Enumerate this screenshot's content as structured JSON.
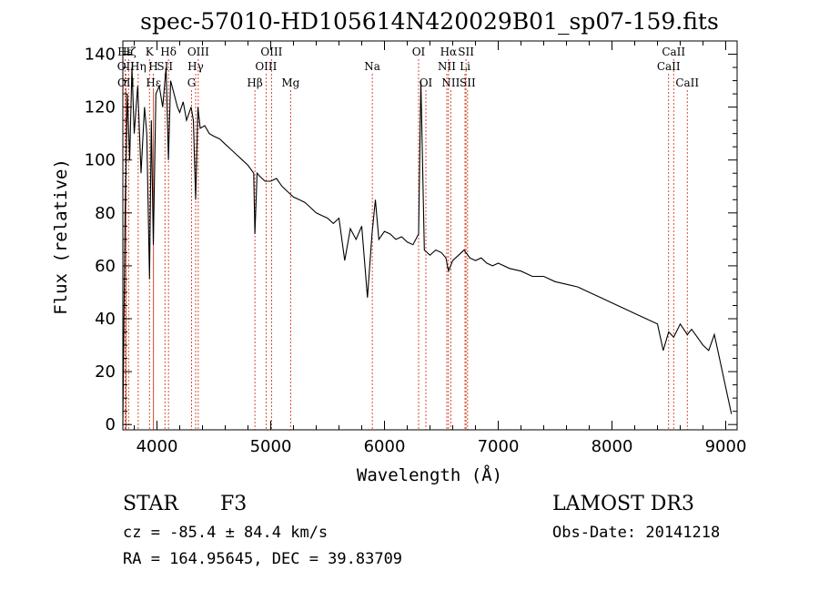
{
  "chart_data": {
    "type": "line",
    "title": "spec-57010-HD105614N420029B01_sp07-159.fits",
    "xlabel": "Wavelength (Å)",
    "ylabel": "Flux (relative)",
    "xlim": [
      3700,
      9100
    ],
    "ylim": [
      -2,
      145
    ],
    "xticks": [
      4000,
      5000,
      6000,
      7000,
      8000,
      9000
    ],
    "yticks": [
      0,
      20,
      40,
      60,
      80,
      100,
      120,
      140
    ],
    "series": [
      {
        "name": "spectrum",
        "x": [
          3700,
          3720,
          3740,
          3760,
          3780,
          3800,
          3830,
          3860,
          3890,
          3910,
          3934,
          3950,
          3968,
          3990,
          4020,
          4050,
          4080,
          4101,
          4120,
          4150,
          4180,
          4200,
          4230,
          4260,
          4300,
          4320,
          4340,
          4360,
          4380,
          4420,
          4460,
          4500,
          4550,
          4600,
          4650,
          4700,
          4750,
          4800,
          4850,
          4861,
          4880,
          4900,
          4950,
          5000,
          5050,
          5100,
          5150,
          5200,
          5250,
          5300,
          5350,
          5400,
          5450,
          5500,
          5550,
          5600,
          5650,
          5700,
          5750,
          5800,
          5850,
          5890,
          5920,
          5950,
          6000,
          6050,
          6100,
          6150,
          6200,
          6250,
          6300,
          6320,
          6350,
          6400,
          6450,
          6500,
          6540,
          6563,
          6600,
          6650,
          6700,
          6750,
          6800,
          6850,
          6900,
          6950,
          7000,
          7100,
          7200,
          7300,
          7400,
          7500,
          7600,
          7700,
          7800,
          7900,
          8000,
          8100,
          8200,
          8300,
          8400,
          8450,
          8498,
          8542,
          8600,
          8662,
          8700,
          8750,
          8800,
          8850,
          8900,
          8950,
          9000,
          9050
        ],
        "y": [
          0,
          80,
          125,
          100,
          135,
          110,
          128,
          95,
          120,
          110,
          55,
          115,
          68,
          125,
          128,
          120,
          135,
          100,
          130,
          125,
          120,
          118,
          122,
          115,
          120,
          115,
          85,
          120,
          112,
          113,
          110,
          109,
          108,
          106,
          104,
          102,
          100,
          98,
          95,
          72,
          95,
          94,
          92,
          92,
          93,
          90,
          88,
          86,
          85,
          84,
          82,
          80,
          79,
          78,
          76,
          78,
          62,
          74,
          70,
          75,
          48,
          72,
          85,
          70,
          73,
          72,
          70,
          71,
          69,
          68,
          72,
          130,
          66,
          64,
          66,
          65,
          63,
          58,
          62,
          64,
          66,
          63,
          62,
          63,
          61,
          60,
          61,
          59,
          58,
          56,
          56,
          54,
          53,
          52,
          50,
          48,
          46,
          44,
          42,
          40,
          38,
          28,
          35,
          33,
          38,
          34,
          36,
          33,
          30,
          28,
          34,
          24,
          14,
          4
        ]
      }
    ],
    "lines": [
      {
        "label": "Hε",
        "wl": 3720,
        "row": 0
      },
      {
        "label": "OII",
        "wl": 3727,
        "row": 1
      },
      {
        "label": "OII",
        "wl": 3729,
        "row": 2
      },
      {
        "label": "Hζ",
        "wl": 3750,
        "row": 0
      },
      {
        "label": "Hη",
        "wl": 3835,
        "row": 1
      },
      {
        "label": "K",
        "wl": 3934,
        "row": 0
      },
      {
        "label": "H",
        "wl": 3968,
        "row": 1
      },
      {
        "label": "Hε",
        "wl": 3970,
        "row": 2
      },
      {
        "label": "SII",
        "wl": 4070,
        "row": 1
      },
      {
        "label": "Hδ",
        "wl": 4101,
        "row": 0
      },
      {
        "label": "G",
        "wl": 4304,
        "row": 2
      },
      {
        "label": "Hγ",
        "wl": 4340,
        "row": 1
      },
      {
        "label": "OIII",
        "wl": 4363,
        "row": 0
      },
      {
        "label": "Hβ",
        "wl": 4861,
        "row": 2
      },
      {
        "label": "OIII",
        "wl": 4959,
        "row": 1
      },
      {
        "label": "OIII",
        "wl": 5007,
        "row": 0
      },
      {
        "label": "Mg",
        "wl": 5175,
        "row": 2
      },
      {
        "label": "Na",
        "wl": 5893,
        "row": 1
      },
      {
        "label": "OI",
        "wl": 6300,
        "row": 0
      },
      {
        "label": "OI",
        "wl": 6364,
        "row": 2
      },
      {
        "label": "NII",
        "wl": 6548,
        "row": 1
      },
      {
        "label": "Hα",
        "wl": 6563,
        "row": 0
      },
      {
        "label": "NII",
        "wl": 6583,
        "row": 2
      },
      {
        "label": "Li",
        "wl": 6708,
        "row": 1
      },
      {
        "label": "SII",
        "wl": 6717,
        "row": 0
      },
      {
        "label": "SII",
        "wl": 6731,
        "row": 2
      },
      {
        "label": "CaII",
        "wl": 8498,
        "row": 1
      },
      {
        "label": "CaII",
        "wl": 8542,
        "row": 0
      },
      {
        "label": "CaII",
        "wl": 8662,
        "row": 2
      }
    ]
  },
  "info": {
    "class": "STAR",
    "subclass": "F3",
    "survey": "LAMOST DR3",
    "cz": "cz = -85.4 ± 84.4 km/s",
    "obsdate": "Obs-Date: 20141218",
    "radec": "RA = 164.95645, DEC =  39.83709"
  },
  "colors": {
    "spectrum": "#000000",
    "marker": "#cc2200",
    "axis": "#000000"
  }
}
